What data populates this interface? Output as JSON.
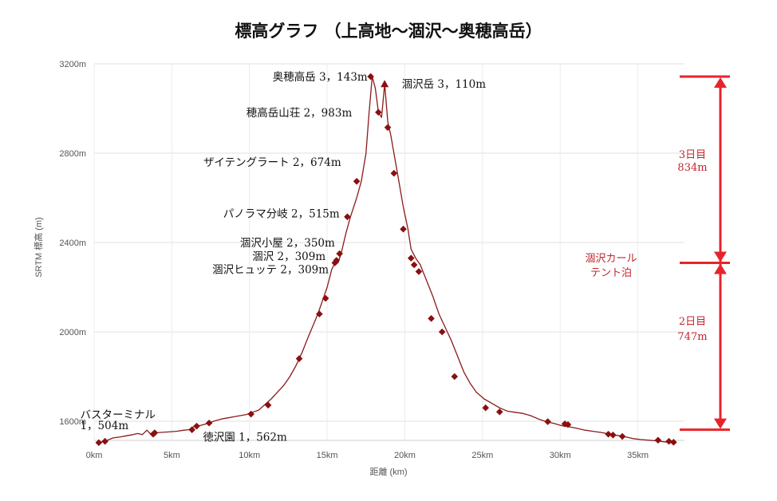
{
  "chart_data": {
    "type": "line",
    "title": "標高グラフ （上高地～涸沢～奥穂高岳）",
    "xlabel": "距離 (km)",
    "ylabel": "SRTM 標高 (m)",
    "xlim": [
      0,
      38
    ],
    "ylim": [
      1500,
      3200
    ],
    "x_ticks": [
      0,
      5,
      10,
      15,
      20,
      25,
      30,
      35
    ],
    "x_tick_labels": [
      "0km",
      "5km",
      "10km",
      "15km",
      "20km",
      "25km",
      "30km",
      "35km"
    ],
    "y_ticks": [
      1600,
      2000,
      2400,
      2800,
      3200
    ],
    "y_tick_labels": [
      "1600m",
      "2000m",
      "2400m",
      "2800m",
      "3200m"
    ],
    "grid": true,
    "line_color": "#8b1a1a",
    "series": [
      {
        "x": [
          0.3,
          0.7,
          1.2,
          1.7,
          2.1,
          2.5,
          2.8,
          3.1,
          3.4,
          3.6,
          3.9,
          4.3,
          4.8,
          5.3,
          5.8,
          6.1,
          6.4,
          6.9,
          7.3,
          7.7,
          8.2,
          8.6,
          9.0,
          9.4,
          9.8,
          10.2,
          10.6,
          11.0,
          11.4,
          11.8,
          12.2,
          12.6,
          13.0,
          13.4,
          13.8,
          14.1,
          14.4,
          14.7,
          15.0,
          15.3,
          15.5,
          15.7,
          15.9,
          16.2,
          16.5,
          16.9,
          17.2,
          17.5,
          17.7,
          17.9,
          18.1,
          18.3,
          18.5,
          18.7,
          18.9,
          19.1,
          19.3,
          19.6,
          19.9,
          20.2,
          20.4,
          20.7,
          21.0,
          21.4,
          21.8,
          22.2,
          22.6,
          23.0,
          23.4,
          23.8,
          24.2,
          24.6,
          25.1,
          25.6,
          26.1,
          26.6,
          27.1,
          27.6,
          28.1,
          28.6,
          29.1,
          29.6,
          30.1,
          30.6,
          31.1,
          31.6,
          32.1,
          32.6,
          33.0,
          33.4,
          33.8,
          34.2,
          34.7,
          35.2,
          35.7,
          36.2,
          36.7,
          37.2
        ],
        "y": [
          1504,
          1510,
          1525,
          1530,
          1535,
          1540,
          1545,
          1540,
          1560,
          1545,
          1548,
          1550,
          1552,
          1555,
          1560,
          1562,
          1575,
          1582,
          1590,
          1600,
          1610,
          1615,
          1620,
          1625,
          1630,
          1640,
          1650,
          1675,
          1700,
          1730,
          1760,
          1800,
          1850,
          1910,
          1980,
          2030,
          2080,
          2140,
          2200,
          2280,
          2309,
          2309,
          2350,
          2440,
          2515,
          2600,
          2674,
          2800,
          2983,
          3143,
          3090,
          2983,
          2960,
          3110,
          2940,
          2880,
          2800,
          2680,
          2560,
          2460,
          2370,
          2330,
          2300,
          2230,
          2160,
          2080,
          2020,
          1960,
          1890,
          1820,
          1770,
          1730,
          1700,
          1680,
          1660,
          1645,
          1640,
          1635,
          1625,
          1610,
          1598,
          1590,
          1580,
          1575,
          1568,
          1560,
          1555,
          1550,
          1545,
          1540,
          1535,
          1530,
          1522,
          1518,
          1515,
          1512,
          1508,
          1504
        ]
      }
    ],
    "markers": [
      {
        "x": 0.3,
        "y": 1504
      },
      {
        "x": 0.7,
        "y": 1510
      },
      {
        "x": 3.8,
        "y": 1542
      },
      {
        "x": 3.9,
        "y": 1548
      },
      {
        "x": 6.3,
        "y": 1562
      },
      {
        "x": 6.6,
        "y": 1578
      },
      {
        "x": 7.4,
        "y": 1592
      },
      {
        "x": 10.1,
        "y": 1632
      },
      {
        "x": 11.2,
        "y": 1672
      },
      {
        "x": 13.2,
        "y": 1880
      },
      {
        "x": 14.5,
        "y": 2080
      },
      {
        "x": 14.9,
        "y": 2150
      },
      {
        "x": 15.5,
        "y": 2309
      },
      {
        "x": 15.6,
        "y": 2320
      },
      {
        "x": 15.8,
        "y": 2350
      },
      {
        "x": 16.3,
        "y": 2515
      },
      {
        "x": 16.9,
        "y": 2674
      },
      {
        "x": 17.8,
        "y": 3143
      },
      {
        "x": 18.3,
        "y": 2983
      },
      {
        "x": 18.9,
        "y": 2915
      },
      {
        "x": 19.3,
        "y": 2710
      },
      {
        "x": 19.9,
        "y": 2460
      },
      {
        "x": 20.4,
        "y": 2330
      },
      {
        "x": 20.6,
        "y": 2300
      },
      {
        "x": 20.9,
        "y": 2270
      },
      {
        "x": 21.7,
        "y": 2060
      },
      {
        "x": 22.4,
        "y": 2000
      },
      {
        "x": 23.2,
        "y": 1800
      },
      {
        "x": 25.2,
        "y": 1660
      },
      {
        "x": 26.1,
        "y": 1642
      },
      {
        "x": 29.2,
        "y": 1598
      },
      {
        "x": 30.3,
        "y": 1588
      },
      {
        "x": 30.5,
        "y": 1585
      },
      {
        "x": 33.1,
        "y": 1542
      },
      {
        "x": 33.4,
        "y": 1538
      },
      {
        "x": 34.0,
        "y": 1532
      },
      {
        "x": 36.3,
        "y": 1515
      },
      {
        "x": 37.0,
        "y": 1510
      },
      {
        "x": 37.3,
        "y": 1506
      }
    ],
    "peak_triangle": {
      "x": 18.7,
      "y": 3110
    },
    "annotations": [
      {
        "text": "奥穂高岳 3，143m",
        "x": 17.6,
        "y": 3143,
        "align": "right"
      },
      {
        "text": "涸沢岳 3，110m",
        "x": 19.8,
        "y": 3110,
        "align": "left"
      },
      {
        "text": "穂高岳山荘 2，983m",
        "x": 16.6,
        "y": 2983,
        "align": "right"
      },
      {
        "text": "ザイテングラート 2，674m",
        "x": 15.9,
        "y": 2760,
        "align": "right"
      },
      {
        "text": "パノラマ分岐 2，515m",
        "x": 15.8,
        "y": 2530,
        "align": "right"
      },
      {
        "text": "涸沢小屋 2，350m",
        "x": 15.5,
        "y": 2400,
        "align": "right"
      },
      {
        "text": "涸沢 2，309m",
        "x": 14.9,
        "y": 2340,
        "align": "right"
      },
      {
        "text": "涸沢ヒュッテ 2，309m",
        "x": 15.1,
        "y": 2280,
        "align": "right"
      },
      {
        "text": "徳沢園 1，562m",
        "x": 7.0,
        "y": 1530,
        "align": "left"
      },
      {
        "text": "バスターミナル",
        "x": -0.9,
        "y": 1630,
        "align": "left"
      },
      {
        "text": "1，504m",
        "x": -0.9,
        "y": 1582,
        "align": "left"
      }
    ],
    "side_annotations": {
      "day3_label": "3日目",
      "day3_value": "834m",
      "camp_label": "涸沢カール",
      "camp_sub": "テント泊",
      "day2_label": "2日目",
      "day2_value": "747m",
      "color": "#e8232b"
    }
  }
}
